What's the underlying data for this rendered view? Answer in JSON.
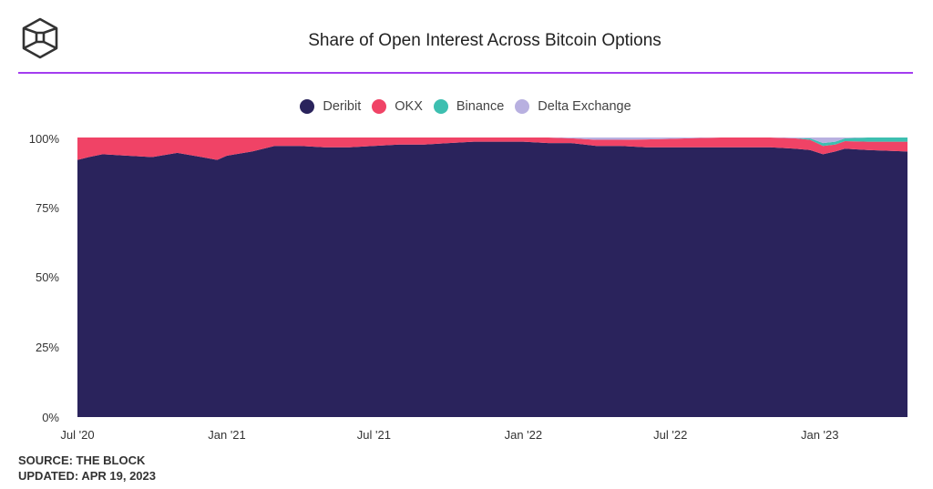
{
  "header": {
    "title": "Share of Open Interest Across Bitcoin Options"
  },
  "footer": {
    "source": "SOURCE: THE BLOCK",
    "updated": "UPDATED: APR 19, 2023"
  },
  "chart_data": {
    "type": "area",
    "stacked": true,
    "normalized": true,
    "title": "Share of Open Interest Across Bitcoin Options",
    "xlabel": "",
    "ylabel": "",
    "ylim": [
      0,
      100
    ],
    "xlim": [
      "2020-07-01",
      "2023-04-19"
    ],
    "grid": false,
    "legend": "top",
    "y_ticks": [
      "0%",
      "25%",
      "50%",
      "75%",
      "100%"
    ],
    "y_tick_values": [
      0,
      25,
      50,
      75,
      100
    ],
    "x_ticks": [
      "Jul '20",
      "Jan '21",
      "Jul '21",
      "Jan '22",
      "Jul '22",
      "Jan '23"
    ],
    "x_tick_dates": [
      "2020-07-01",
      "2021-01-01",
      "2021-07-01",
      "2022-01-01",
      "2022-07-01",
      "2023-01-01"
    ],
    "x": [
      "2020-07-01",
      "2020-07-15",
      "2020-08-01",
      "2020-09-01",
      "2020-10-01",
      "2020-11-01",
      "2020-12-01",
      "2020-12-20",
      "2021-01-01",
      "2021-02-01",
      "2021-03-01",
      "2021-04-01",
      "2021-05-01",
      "2021-06-01",
      "2021-07-01",
      "2021-08-01",
      "2021-09-01",
      "2021-10-01",
      "2021-11-01",
      "2021-12-01",
      "2022-01-01",
      "2022-02-01",
      "2022-03-01",
      "2022-04-01",
      "2022-05-01",
      "2022-06-01",
      "2022-07-01",
      "2022-08-01",
      "2022-09-01",
      "2022-10-01",
      "2022-11-01",
      "2022-12-01",
      "2022-12-20",
      "2023-01-05",
      "2023-01-20",
      "2023-02-01",
      "2023-03-01",
      "2023-04-19"
    ],
    "series": [
      {
        "name": "Deribit",
        "color": "#2a235c",
        "values": [
          92,
          93,
          94,
          93.5,
          93,
          94.5,
          93,
          92,
          93.5,
          95,
          97,
          97,
          96.5,
          96.5,
          97,
          97.5,
          97.5,
          98,
          98.5,
          98.5,
          98.5,
          98,
          98,
          97,
          97,
          96.5,
          96.5,
          96.5,
          96.5,
          96.5,
          96.5,
          96,
          95.5,
          94,
          95,
          96,
          95.5,
          95
        ]
      },
      {
        "name": "OKX",
        "color": "#f04366",
        "values": [
          8,
          7,
          6,
          6.5,
          7,
          5.5,
          7,
          8,
          6.5,
          5,
          3,
          3,
          3.5,
          3.5,
          3,
          2.5,
          2.5,
          2,
          1.5,
          1.5,
          1.5,
          2,
          1.7,
          2.2,
          2.2,
          2.8,
          3,
          3.3,
          3.5,
          3.5,
          3.5,
          3.7,
          3.7,
          3,
          2.5,
          2.7,
          3,
          3.5
        ]
      },
      {
        "name": "Binance",
        "color": "#3dbfb0",
        "values": [
          0,
          0,
          0,
          0,
          0,
          0,
          0,
          0,
          0,
          0,
          0,
          0,
          0,
          0,
          0,
          0,
          0,
          0,
          0,
          0,
          0,
          0,
          0,
          0,
          0,
          0,
          0,
          0,
          0,
          0,
          0,
          0,
          0.5,
          1,
          1,
          1,
          1.5,
          1.5
        ]
      },
      {
        "name": "Delta Exchange",
        "color": "#b8b0e0",
        "values": [
          0,
          0,
          0,
          0,
          0,
          0,
          0,
          0,
          0,
          0,
          0,
          0,
          0,
          0,
          0,
          0,
          0,
          0,
          0,
          0,
          0,
          0,
          0.3,
          0.8,
          0.8,
          0.7,
          0.5,
          0.2,
          0,
          0,
          0,
          0.3,
          0.3,
          2,
          1.5,
          0.3,
          0,
          0
        ]
      }
    ]
  }
}
